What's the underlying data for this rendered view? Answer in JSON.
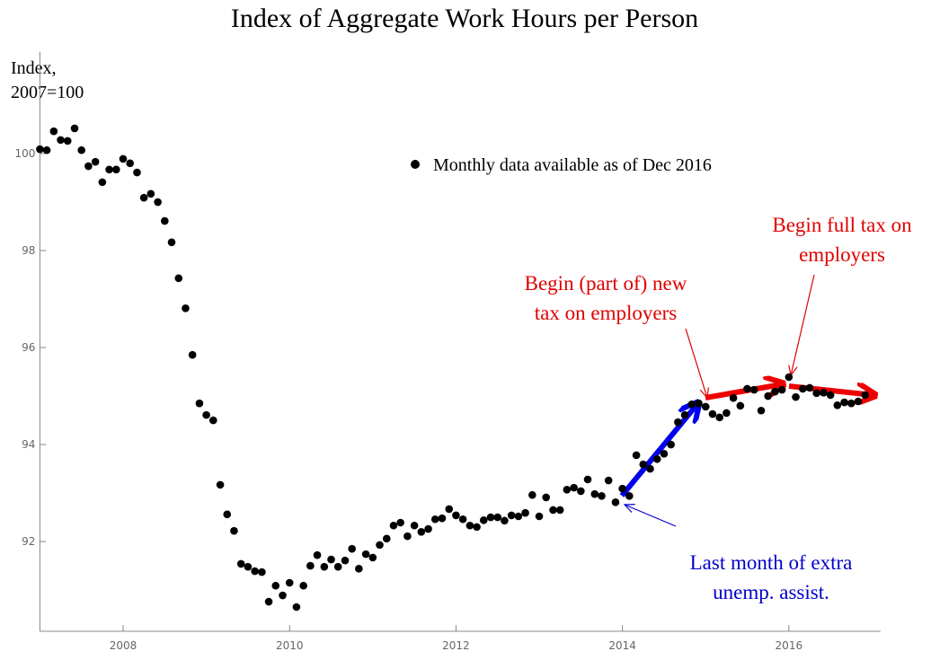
{
  "chart_data": {
    "type": "scatter",
    "title": "Index of Aggregate Work Hours per Person",
    "y_label": [
      "Index,",
      "2007=100"
    ],
    "series": [
      {
        "name": "Monthly data available as of Dec 2016",
        "color": "#000000",
        "x": [
          2007.0,
          2007.083,
          2007.167,
          2007.25,
          2007.333,
          2007.417,
          2007.5,
          2007.583,
          2007.667,
          2007.75,
          2007.833,
          2007.917,
          2008.0,
          2008.083,
          2008.167,
          2008.25,
          2008.333,
          2008.417,
          2008.5,
          2008.583,
          2008.667,
          2008.75,
          2008.833,
          2008.917,
          2009.0,
          2009.083,
          2009.167,
          2009.25,
          2009.333,
          2009.417,
          2009.5,
          2009.583,
          2009.667,
          2009.75,
          2009.833,
          2009.917,
          2010.0,
          2010.083,
          2010.167,
          2010.25,
          2010.333,
          2010.417,
          2010.5,
          2010.583,
          2010.667,
          2010.75,
          2010.833,
          2010.917,
          2011.0,
          2011.083,
          2011.167,
          2011.25,
          2011.333,
          2011.417,
          2011.5,
          2011.583,
          2011.667,
          2011.75,
          2011.833,
          2011.917,
          2012.0,
          2012.083,
          2012.167,
          2012.25,
          2012.333,
          2012.417,
          2012.5,
          2012.583,
          2012.667,
          2012.75,
          2012.833,
          2012.917,
          2013.0,
          2013.083,
          2013.167,
          2013.25,
          2013.333,
          2013.417,
          2013.5,
          2013.583,
          2013.667,
          2013.75,
          2013.833,
          2013.917,
          2014.0,
          2014.083,
          2014.167,
          2014.25,
          2014.333,
          2014.417,
          2014.5,
          2014.583,
          2014.667,
          2014.75,
          2014.833,
          2014.917,
          2015.0,
          2015.083,
          2015.167,
          2015.25,
          2015.333,
          2015.417,
          2015.5,
          2015.583,
          2015.667,
          2015.75,
          2015.833,
          2015.917,
          2016.0,
          2016.083,
          2016.167,
          2016.25,
          2016.333,
          2016.417,
          2016.5,
          2016.583,
          2016.667,
          2016.75,
          2016.833,
          2016.917
        ],
        "values": [
          100.09,
          100.07,
          100.46,
          100.28,
          100.26,
          100.52,
          100.07,
          99.74,
          99.83,
          99.41,
          99.67,
          99.67,
          99.89,
          99.8,
          99.61,
          99.09,
          99.17,
          99.0,
          98.61,
          98.17,
          97.43,
          96.81,
          95.85,
          94.85,
          94.61,
          94.5,
          93.17,
          92.56,
          92.22,
          91.54,
          91.48,
          91.39,
          91.37,
          90.76,
          91.09,
          90.89,
          91.15,
          90.65,
          91.09,
          91.5,
          91.72,
          91.48,
          91.63,
          91.48,
          91.61,
          91.85,
          91.44,
          91.74,
          91.67,
          91.93,
          92.06,
          92.33,
          92.39,
          92.11,
          92.33,
          92.2,
          92.26,
          92.46,
          92.48,
          92.67,
          92.54,
          92.46,
          92.33,
          92.3,
          92.44,
          92.5,
          92.5,
          92.43,
          92.54,
          92.52,
          92.59,
          92.96,
          92.52,
          92.91,
          92.65,
          92.65,
          93.07,
          93.11,
          93.04,
          93.28,
          92.98,
          92.94,
          93.26,
          92.81,
          93.09,
          92.94,
          93.78,
          93.59,
          93.5,
          93.7,
          93.81,
          94.0,
          94.46,
          94.61,
          94.83,
          94.85,
          94.78,
          94.63,
          94.56,
          94.65,
          94.96,
          94.8,
          95.15,
          95.13,
          94.7,
          95.0,
          95.09,
          95.13,
          95.39,
          94.98,
          95.15,
          95.17,
          95.06,
          95.07,
          95.02,
          94.81,
          94.87,
          94.85,
          94.89,
          95.02
        ]
      }
    ],
    "xlim": [
      2007,
      2017.1
    ],
    "xticks": [
      2008,
      2010,
      2012,
      2014,
      2016
    ],
    "ylim": [
      90.15,
      102.1
    ],
    "yticks": [
      92,
      94,
      96,
      98,
      100
    ],
    "annotations": [
      {
        "lines": [
          "Begin (part of) new",
          "tax on employers"
        ],
        "color": "#e00000"
      },
      {
        "lines": [
          "Begin full tax on",
          "employers"
        ],
        "color": "#e00000"
      },
      {
        "lines": [
          "Last month of extra",
          "unemp. assist."
        ],
        "color": "#0000cc"
      }
    ]
  }
}
